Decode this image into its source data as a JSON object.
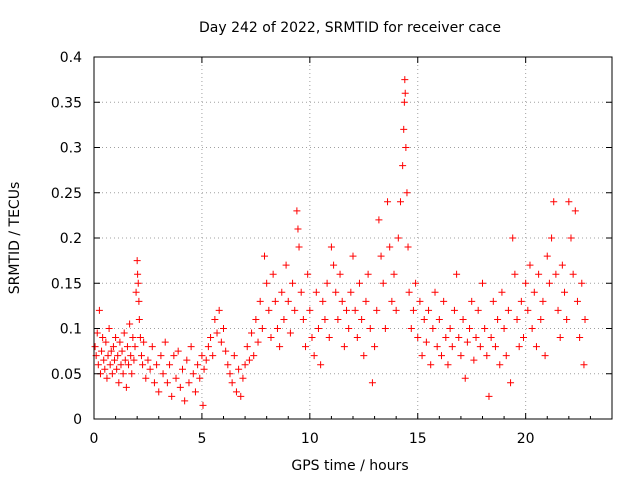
{
  "chart_data": {
    "type": "scatter",
    "title": "Day 242 of 2022, SRMTID for receiver cace",
    "xlabel": "GPS time / hours",
    "ylabel": "SRMTID / TECUs",
    "xlim": [
      0,
      24
    ],
    "ylim": [
      0,
      0.4
    ],
    "grid": true,
    "marker": "plus",
    "color": "#ff0000",
    "x_ticks": [
      {
        "value": 0,
        "label": "0"
      },
      {
        "value": 5,
        "label": "5"
      },
      {
        "value": 10,
        "label": "10"
      },
      {
        "value": 15,
        "label": "15"
      },
      {
        "value": 20,
        "label": "20"
      }
    ],
    "y_ticks": [
      {
        "value": 0,
        "label": "0"
      },
      {
        "value": 0.05,
        "label": "0.05"
      },
      {
        "value": 0.1,
        "label": "0.1"
      },
      {
        "value": 0.15,
        "label": "0.15"
      },
      {
        "value": 0.2,
        "label": "0.2"
      },
      {
        "value": 0.25,
        "label": "0.25"
      },
      {
        "value": 0.3,
        "label": "0.3"
      },
      {
        "value": 0.35,
        "label": "0.35"
      },
      {
        "value": 0.4,
        "label": "0.4"
      }
    ],
    "series": [
      {
        "name": "cace",
        "points": [
          [
            0.05,
            0.08
          ],
          [
            0.1,
            0.07
          ],
          [
            0.15,
            0.095
          ],
          [
            0.2,
            0.06
          ],
          [
            0.25,
            0.12
          ],
          [
            0.3,
            0.05
          ],
          [
            0.35,
            0.075
          ],
          [
            0.4,
            0.09
          ],
          [
            0.45,
            0.065
          ],
          [
            0.5,
            0.055
          ],
          [
            0.55,
            0.085
          ],
          [
            0.6,
            0.045
          ],
          [
            0.65,
            0.07
          ],
          [
            0.7,
            0.1
          ],
          [
            0.75,
            0.06
          ],
          [
            0.8,
            0.075
          ],
          [
            0.85,
            0.05
          ],
          [
            0.9,
            0.08
          ],
          [
            0.95,
            0.065
          ],
          [
            1.0,
            0.09
          ],
          [
            1.05,
            0.055
          ],
          [
            1.1,
            0.07
          ],
          [
            1.15,
            0.04
          ],
          [
            1.2,
            0.085
          ],
          [
            1.25,
            0.06
          ],
          [
            1.3,
            0.075
          ],
          [
            1.35,
            0.05
          ],
          [
            1.4,
            0.095
          ],
          [
            1.45,
            0.065
          ],
          [
            1.5,
            0.035
          ],
          [
            1.55,
            0.08
          ],
          [
            1.6,
            0.06
          ],
          [
            1.65,
            0.105
          ],
          [
            1.7,
            0.07
          ],
          [
            1.75,
            0.05
          ],
          [
            1.8,
            0.09
          ],
          [
            1.85,
            0.065
          ],
          [
            1.9,
            0.08
          ],
          [
            1.95,
            0.14
          ],
          [
            2.0,
            0.175
          ],
          [
            2.02,
            0.16
          ],
          [
            2.05,
            0.15
          ],
          [
            2.08,
            0.13
          ],
          [
            2.1,
            0.11
          ],
          [
            2.15,
            0.09
          ],
          [
            2.2,
            0.07
          ],
          [
            2.25,
            0.06
          ],
          [
            2.3,
            0.085
          ],
          [
            2.4,
            0.045
          ],
          [
            2.5,
            0.065
          ],
          [
            2.6,
            0.055
          ],
          [
            2.7,
            0.08
          ],
          [
            2.8,
            0.04
          ],
          [
            2.9,
            0.06
          ],
          [
            3.0,
            0.03
          ],
          [
            3.1,
            0.07
          ],
          [
            3.2,
            0.05
          ],
          [
            3.3,
            0.085
          ],
          [
            3.4,
            0.04
          ],
          [
            3.5,
            0.06
          ],
          [
            3.6,
            0.025
          ],
          [
            3.7,
            0.07
          ],
          [
            3.8,
            0.045
          ],
          [
            3.9,
            0.075
          ],
          [
            4.0,
            0.035
          ],
          [
            4.1,
            0.055
          ],
          [
            4.2,
            0.02
          ],
          [
            4.3,
            0.065
          ],
          [
            4.4,
            0.04
          ],
          [
            4.5,
            0.08
          ],
          [
            4.6,
            0.05
          ],
          [
            4.7,
            0.03
          ],
          [
            4.8,
            0.06
          ],
          [
            4.9,
            0.045
          ],
          [
            5.0,
            0.07
          ],
          [
            5.05,
            0.015
          ],
          [
            5.1,
            0.055
          ],
          [
            5.2,
            0.065
          ],
          [
            5.3,
            0.08
          ],
          [
            5.4,
            0.09
          ],
          [
            5.5,
            0.07
          ],
          [
            5.6,
            0.11
          ],
          [
            5.7,
            0.095
          ],
          [
            5.8,
            0.12
          ],
          [
            5.9,
            0.085
          ],
          [
            6.0,
            0.1
          ],
          [
            6.1,
            0.075
          ],
          [
            6.2,
            0.06
          ],
          [
            6.3,
            0.05
          ],
          [
            6.4,
            0.04
          ],
          [
            6.5,
            0.07
          ],
          [
            6.6,
            0.03
          ],
          [
            6.7,
            0.055
          ],
          [
            6.8,
            0.025
          ],
          [
            6.9,
            0.045
          ],
          [
            7.0,
            0.06
          ],
          [
            7.1,
            0.08
          ],
          [
            7.2,
            0.065
          ],
          [
            7.3,
            0.095
          ],
          [
            7.4,
            0.07
          ],
          [
            7.5,
            0.11
          ],
          [
            7.6,
            0.085
          ],
          [
            7.7,
            0.13
          ],
          [
            7.8,
            0.1
          ],
          [
            7.9,
            0.18
          ],
          [
            8.0,
            0.15
          ],
          [
            8.1,
            0.12
          ],
          [
            8.2,
            0.09
          ],
          [
            8.3,
            0.16
          ],
          [
            8.4,
            0.13
          ],
          [
            8.5,
            0.1
          ],
          [
            8.6,
            0.08
          ],
          [
            8.7,
            0.14
          ],
          [
            8.8,
            0.11
          ],
          [
            8.9,
            0.17
          ],
          [
            9.0,
            0.13
          ],
          [
            9.1,
            0.095
          ],
          [
            9.2,
            0.15
          ],
          [
            9.3,
            0.12
          ],
          [
            9.4,
            0.23
          ],
          [
            9.45,
            0.21
          ],
          [
            9.5,
            0.19
          ],
          [
            9.6,
            0.14
          ],
          [
            9.7,
            0.11
          ],
          [
            9.8,
            0.08
          ],
          [
            9.9,
            0.16
          ],
          [
            10.0,
            0.12
          ],
          [
            10.1,
            0.09
          ],
          [
            10.2,
            0.07
          ],
          [
            10.3,
            0.14
          ],
          [
            10.4,
            0.1
          ],
          [
            10.5,
            0.06
          ],
          [
            10.6,
            0.13
          ],
          [
            10.7,
            0.11
          ],
          [
            10.8,
            0.15
          ],
          [
            10.9,
            0.09
          ],
          [
            11.0,
            0.19
          ],
          [
            11.1,
            0.17
          ],
          [
            11.2,
            0.14
          ],
          [
            11.3,
            0.11
          ],
          [
            11.4,
            0.16
          ],
          [
            11.5,
            0.13
          ],
          [
            11.6,
            0.08
          ],
          [
            11.7,
            0.12
          ],
          [
            11.8,
            0.1
          ],
          [
            11.9,
            0.14
          ],
          [
            12.0,
            0.18
          ],
          [
            12.1,
            0.12
          ],
          [
            12.2,
            0.09
          ],
          [
            12.3,
            0.15
          ],
          [
            12.4,
            0.11
          ],
          [
            12.5,
            0.07
          ],
          [
            12.6,
            0.13
          ],
          [
            12.7,
            0.16
          ],
          [
            12.8,
            0.1
          ],
          [
            12.9,
            0.04
          ],
          [
            13.0,
            0.08
          ],
          [
            13.1,
            0.12
          ],
          [
            13.2,
            0.22
          ],
          [
            13.3,
            0.18
          ],
          [
            13.4,
            0.15
          ],
          [
            13.5,
            0.1
          ],
          [
            13.6,
            0.24
          ],
          [
            13.7,
            0.19
          ],
          [
            13.8,
            0.13
          ],
          [
            13.9,
            0.16
          ],
          [
            14.0,
            0.12
          ],
          [
            14.1,
            0.2
          ],
          [
            14.2,
            0.24
          ],
          [
            14.3,
            0.28
          ],
          [
            14.35,
            0.32
          ],
          [
            14.38,
            0.35
          ],
          [
            14.4,
            0.375
          ],
          [
            14.42,
            0.36
          ],
          [
            14.45,
            0.3
          ],
          [
            14.5,
            0.25
          ],
          [
            14.55,
            0.19
          ],
          [
            14.6,
            0.14
          ],
          [
            14.7,
            0.1
          ],
          [
            14.8,
            0.12
          ],
          [
            14.9,
            0.15
          ],
          [
            15.0,
            0.09
          ],
          [
            15.1,
            0.13
          ],
          [
            15.2,
            0.07
          ],
          [
            15.3,
            0.11
          ],
          [
            15.4,
            0.085
          ],
          [
            15.5,
            0.12
          ],
          [
            15.6,
            0.06
          ],
          [
            15.7,
            0.1
          ],
          [
            15.8,
            0.14
          ],
          [
            15.9,
            0.08
          ],
          [
            16.0,
            0.11
          ],
          [
            16.1,
            0.07
          ],
          [
            16.2,
            0.13
          ],
          [
            16.3,
            0.09
          ],
          [
            16.4,
            0.06
          ],
          [
            16.5,
            0.1
          ],
          [
            16.6,
            0.08
          ],
          [
            16.7,
            0.12
          ],
          [
            16.8,
            0.16
          ],
          [
            16.9,
            0.09
          ],
          [
            17.0,
            0.07
          ],
          [
            17.1,
            0.11
          ],
          [
            17.2,
            0.045
          ],
          [
            17.3,
            0.085
          ],
          [
            17.4,
            0.1
          ],
          [
            17.5,
            0.13
          ],
          [
            17.6,
            0.065
          ],
          [
            17.7,
            0.09
          ],
          [
            17.8,
            0.12
          ],
          [
            17.9,
            0.08
          ],
          [
            18.0,
            0.15
          ],
          [
            18.1,
            0.1
          ],
          [
            18.2,
            0.07
          ],
          [
            18.3,
            0.025
          ],
          [
            18.4,
            0.09
          ],
          [
            18.5,
            0.13
          ],
          [
            18.6,
            0.08
          ],
          [
            18.7,
            0.11
          ],
          [
            18.8,
            0.06
          ],
          [
            18.9,
            0.14
          ],
          [
            19.0,
            0.1
          ],
          [
            19.1,
            0.07
          ],
          [
            19.2,
            0.12
          ],
          [
            19.3,
            0.04
          ],
          [
            19.4,
            0.2
          ],
          [
            19.5,
            0.16
          ],
          [
            19.6,
            0.11
          ],
          [
            19.7,
            0.08
          ],
          [
            19.8,
            0.13
          ],
          [
            19.9,
            0.09
          ],
          [
            20.0,
            0.15
          ],
          [
            20.1,
            0.12
          ],
          [
            20.2,
            0.17
          ],
          [
            20.3,
            0.1
          ],
          [
            20.4,
            0.14
          ],
          [
            20.5,
            0.08
          ],
          [
            20.6,
            0.16
          ],
          [
            20.7,
            0.11
          ],
          [
            20.8,
            0.13
          ],
          [
            20.9,
            0.07
          ],
          [
            21.0,
            0.18
          ],
          [
            21.1,
            0.15
          ],
          [
            21.2,
            0.2
          ],
          [
            21.3,
            0.24
          ],
          [
            21.4,
            0.16
          ],
          [
            21.5,
            0.12
          ],
          [
            21.6,
            0.09
          ],
          [
            21.7,
            0.17
          ],
          [
            21.8,
            0.14
          ],
          [
            21.9,
            0.11
          ],
          [
            22.0,
            0.24
          ],
          [
            22.1,
            0.2
          ],
          [
            22.2,
            0.16
          ],
          [
            22.3,
            0.23
          ],
          [
            22.4,
            0.13
          ],
          [
            22.5,
            0.09
          ],
          [
            22.6,
            0.15
          ],
          [
            22.7,
            0.06
          ],
          [
            22.75,
            0.11
          ]
        ]
      }
    ]
  }
}
